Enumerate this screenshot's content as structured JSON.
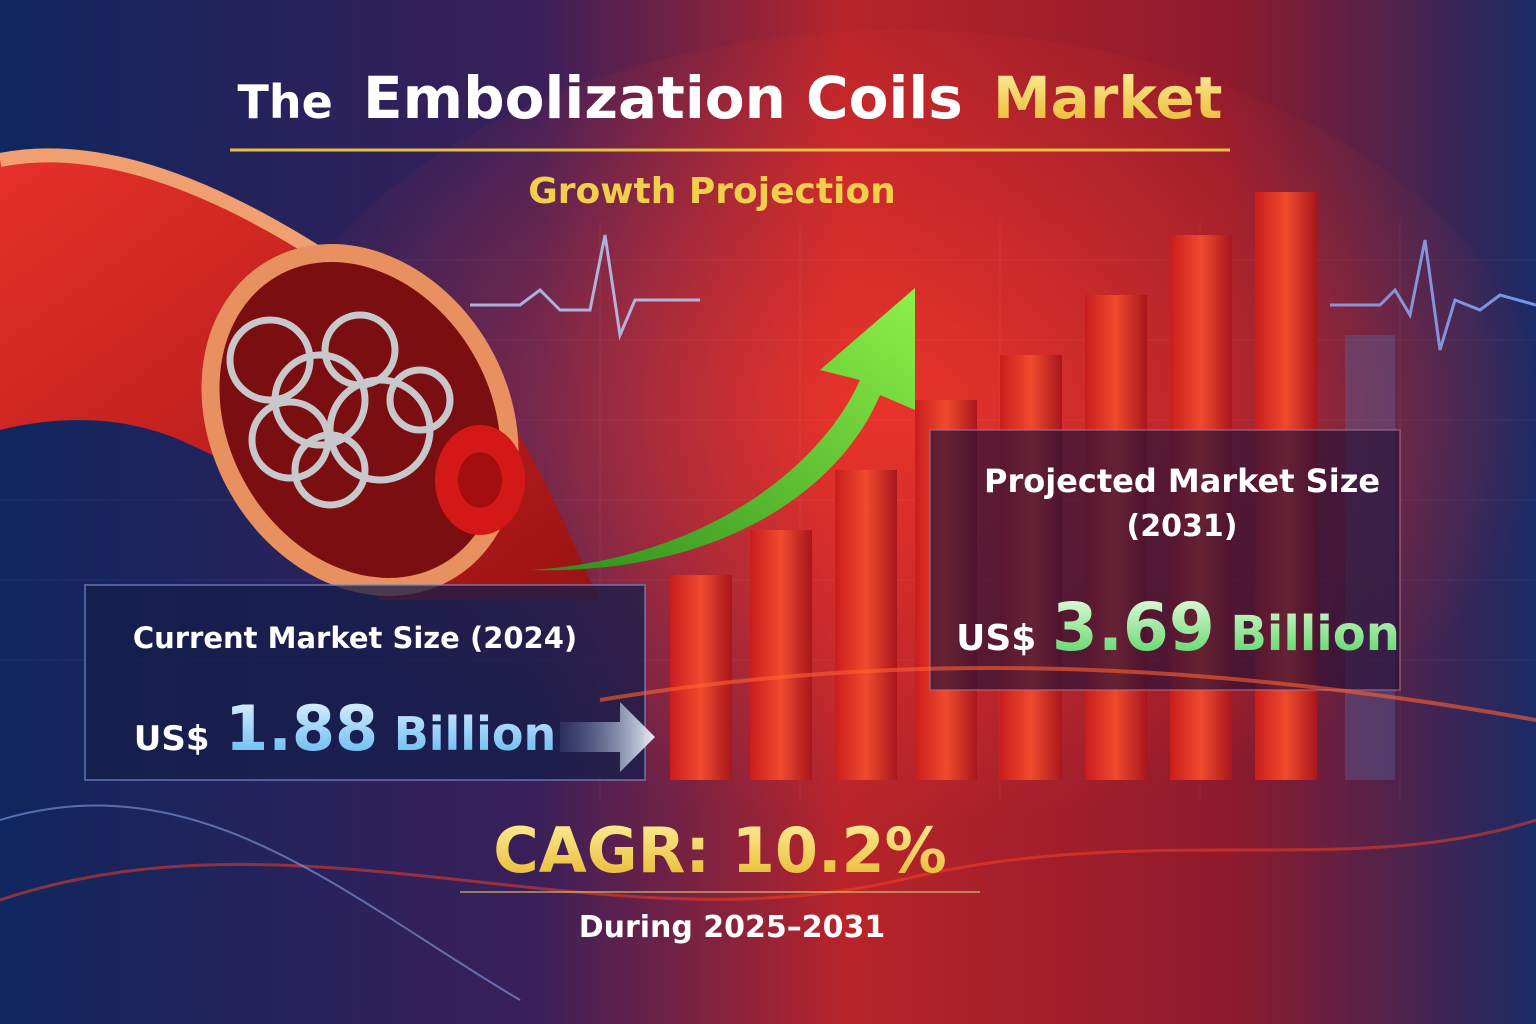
{
  "title": {
    "parts": [
      "The",
      "Embolization Coils",
      "Market"
    ]
  },
  "subtitle": "Growth Projection",
  "current": {
    "label": "Current Market Size (2024)",
    "currency": "US$",
    "amount": "1.88",
    "unit": "Billion"
  },
  "projected": {
    "label": "Projected Market Size",
    "year": "(2031)",
    "currency": "US$",
    "amount": "3.69",
    "unit": "Billion"
  },
  "cagr": {
    "label": "CAGR: 10.2%",
    "period": "During 2025–2031"
  }
}
